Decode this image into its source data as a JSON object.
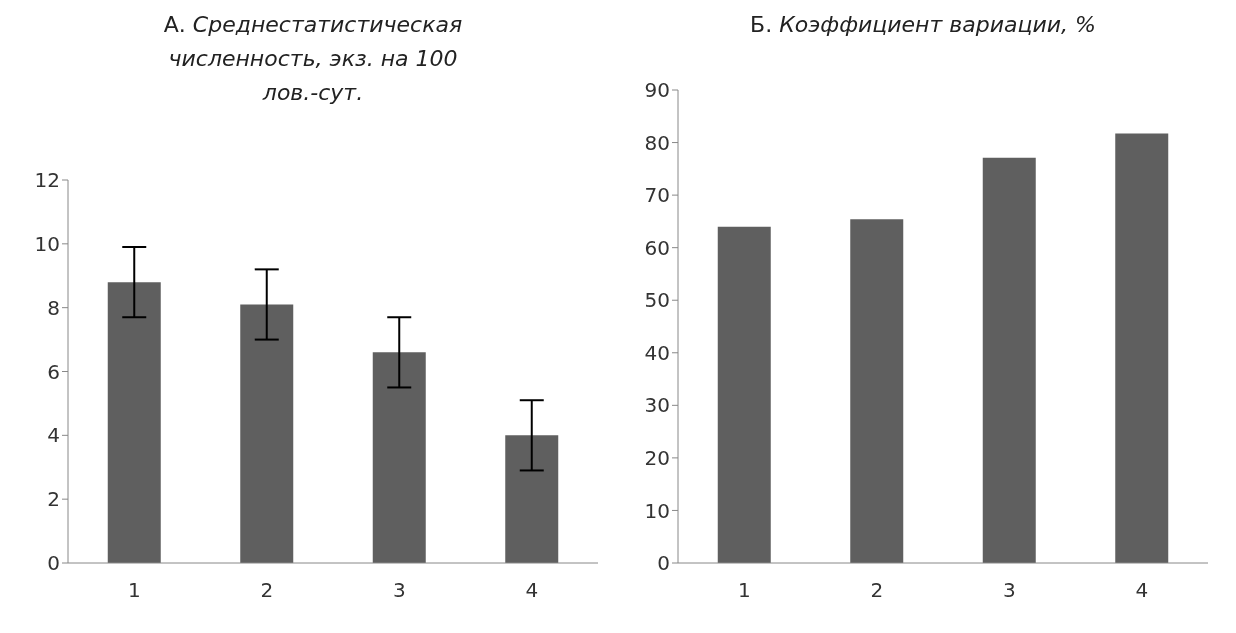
{
  "chart_data": [
    {
      "type": "bar",
      "title": "А. Среднестатистическая численность, экз. на 100 лов.-сут.",
      "categories": [
        "1",
        "2",
        "3",
        "4"
      ],
      "values": [
        8.8,
        8.1,
        6.6,
        4.0
      ],
      "errors": [
        1.1,
        1.1,
        1.1,
        1.1
      ],
      "color": "#5f5f5f",
      "ylim": [
        0,
        12
      ],
      "yticks": [
        0,
        2,
        4,
        6,
        8,
        10,
        12
      ],
      "grid": false,
      "legend": false
    },
    {
      "type": "bar",
      "title": "Б. Коэффициент вариации, %",
      "categories": [
        "1",
        "2",
        "3",
        "4"
      ],
      "values": [
        64,
        65.4,
        77.1,
        81.7
      ],
      "color": "#5f5f5f",
      "ylim": [
        0,
        90
      ],
      "yticks": [
        0,
        10,
        20,
        30,
        40,
        50,
        60,
        70,
        80,
        90
      ],
      "grid": false,
      "legend": false
    }
  ]
}
